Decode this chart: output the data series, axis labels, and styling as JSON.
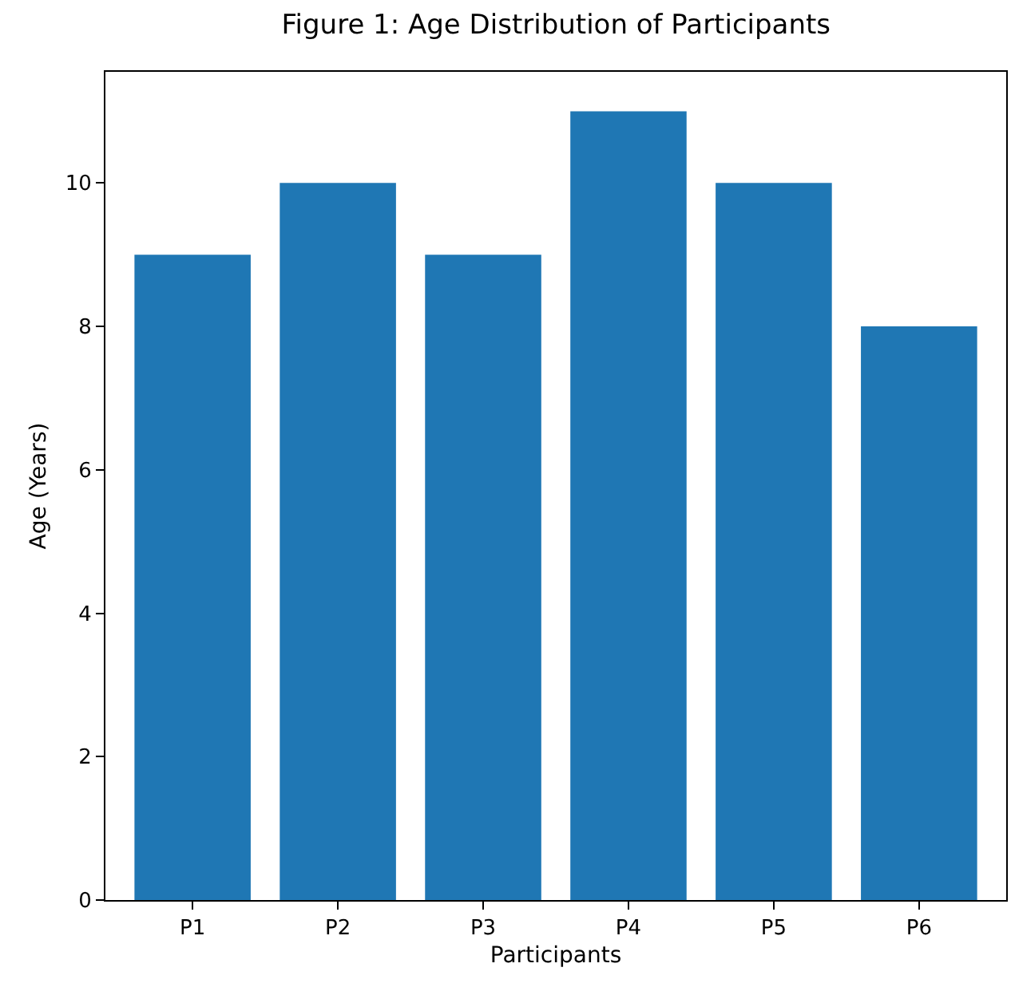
{
  "chart_data": {
    "type": "bar",
    "title": "Figure 1: Age Distribution of Participants",
    "xlabel": "Participants",
    "ylabel": "Age (Years)",
    "categories": [
      "P1",
      "P2",
      "P3",
      "P4",
      "P5",
      "P6"
    ],
    "values": [
      9,
      10,
      9,
      11,
      10,
      8
    ],
    "color": "#1f77b4",
    "ylim": [
      0,
      11.55
    ],
    "yticks": [
      0,
      2,
      4,
      6,
      8,
      10
    ]
  }
}
